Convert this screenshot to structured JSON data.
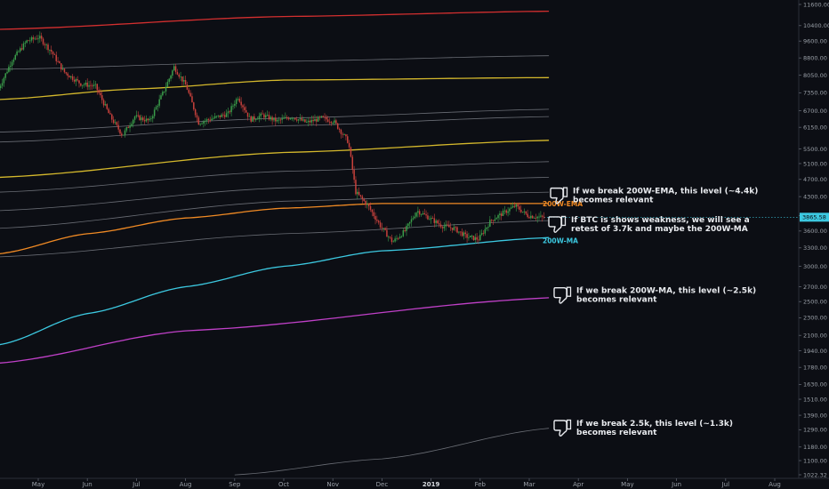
{
  "chart_data": {
    "type": "line",
    "price_scale": "log",
    "y_ticks": [
      11600,
      10400,
      9600,
      8800,
      8050,
      7350,
      6700,
      6150,
      5500,
      5100,
      4700,
      4300,
      3900,
      3600,
      3300,
      3000,
      2700,
      2500,
      2300,
      2100,
      1940,
      1780,
      1630,
      1510,
      1390,
      1290,
      1180,
      1100,
      1022.32
    ],
    "y_tick_labels": [
      "11600.00",
      "10400.00",
      "9600.00",
      "8800.00",
      "8050.00",
      "7350.00",
      "6700.00",
      "6150.00",
      "5500.00",
      "5100.00",
      "4700.00",
      "4300.00",
      "3900.00",
      "3600.00",
      "3300.00",
      "3000.00",
      "2700.00",
      "2500.00",
      "2300.00",
      "2100.00",
      "1940.00",
      "1780.00",
      "1630.00",
      "1510.00",
      "1390.00",
      "1290.00",
      "1180.00",
      "1100.00",
      "1022.32"
    ],
    "ylim": [
      1022.32,
      11600
    ],
    "x_ticks": [
      "May",
      "Jun",
      "Jul",
      "Aug",
      "Sep",
      "Oct",
      "Nov",
      "Dec",
      "2019",
      "Feb",
      "Mar",
      "Apr",
      "May",
      "Jun",
      "Jul",
      "Aug"
    ],
    "x_tick_positions": [
      0,
      1,
      2,
      3,
      4,
      5,
      6,
      7,
      8,
      9,
      10,
      11,
      12,
      13,
      14,
      15
    ],
    "bold_tick": "2019",
    "current_price_label": "3865.58",
    "current_price": 3865.58,
    "series": [
      {
        "name": "",
        "color": "#d32f2f",
        "x": [
          -0.8,
          5,
          10.4
        ],
        "y": [
          10200,
          10900,
          11200
        ]
      },
      {
        "name": "",
        "color": "#888c94",
        "x": [
          -0.8,
          5,
          10.4
        ],
        "y": [
          8300,
          8650,
          8900
        ]
      },
      {
        "name": "",
        "color": "#d4b82c",
        "x": [
          -0.8,
          2,
          5,
          10.4
        ],
        "y": [
          7100,
          7500,
          7850,
          7950
        ]
      },
      {
        "name": "",
        "color": "#888c94",
        "x": [
          -0.8,
          5,
          10.4
        ],
        "y": [
          6000,
          6450,
          6750
        ]
      },
      {
        "name": "",
        "color": "#888c94",
        "x": [
          -0.8,
          5,
          10.4
        ],
        "y": [
          5700,
          6200,
          6500
        ]
      },
      {
        "name": "",
        "color": "#d4b82c",
        "x": [
          -0.8,
          5,
          10.4
        ],
        "y": [
          4750,
          5400,
          5750
        ]
      },
      {
        "name": "",
        "color": "#888c94",
        "x": [
          -0.8,
          5,
          10.4
        ],
        "y": [
          4400,
          4900,
          5150
        ]
      },
      {
        "name": "",
        "color": "#888c94",
        "x": [
          -0.8,
          5,
          10.4
        ],
        "y": [
          4000,
          4500,
          4750
        ]
      },
      {
        "name": "",
        "color": "#888c94",
        "x": [
          -0.8,
          5,
          10.4
        ],
        "y": [
          3650,
          4200,
          4400
        ]
      },
      {
        "name": "200W-EMA",
        "color": "#f08a24",
        "x": [
          -0.8,
          1,
          3,
          5,
          7,
          10.4
        ],
        "y": [
          3200,
          3550,
          3850,
          4050,
          4150,
          4150
        ]
      },
      {
        "name": "",
        "color": "#888c94",
        "x": [
          -0.8,
          5,
          10.4
        ],
        "y": [
          3150,
          3550,
          3800
        ]
      },
      {
        "name": "200W-MA",
        "color": "#3cc8e0",
        "x": [
          -0.8,
          1,
          3,
          5,
          7,
          10.4
        ],
        "y": [
          2000,
          2350,
          2700,
          3000,
          3250,
          3480
        ]
      },
      {
        "name": "",
        "color": "#c040c8",
        "x": [
          -0.8,
          3,
          10.4
        ],
        "y": [
          1820,
          2150,
          2550
        ]
      },
      {
        "name": "",
        "color": "#888c94",
        "x": [
          4,
          7,
          10.4
        ],
        "y": [
          1022,
          1110,
          1300
        ]
      }
    ],
    "price_path": {
      "x": [
        -0.8,
        -0.5,
        -0.2,
        0.05,
        0.3,
        0.55,
        0.9,
        1.2,
        1.5,
        1.75,
        2.0,
        2.3,
        2.6,
        2.8,
        3.05,
        3.3,
        3.6,
        3.9,
        4.1,
        4.35,
        4.6,
        4.9,
        5.2,
        5.5,
        5.8,
        6.05,
        6.35,
        6.5,
        6.75,
        7.0,
        7.25,
        7.5,
        7.75,
        8.0,
        8.25,
        8.5,
        8.75,
        9.0,
        9.25,
        9.5,
        9.75,
        10.0,
        10.3
      ],
      "y": [
        7400,
        8700,
        9600,
        9800,
        9100,
        8200,
        7700,
        7600,
        6500,
        5900,
        6500,
        6350,
        7450,
        8400,
        7600,
        6300,
        6450,
        6600,
        7200,
        6400,
        6550,
        6350,
        6500,
        6300,
        6450,
        6350,
        5700,
        4400,
        4100,
        3700,
        3400,
        3600,
        4000,
        3850,
        3700,
        3650,
        3500,
        3450,
        3800,
        3950,
        4100,
        3900,
        3860
      ]
    },
    "annotations": [
      {
        "text_1": "If we break 200W-EMA, this level (~4.4k)",
        "text_2": "becomes relevant",
        "anchor_y": 4350
      },
      {
        "text_1": "If BTC is shows weakness, we will see a",
        "text_2": "retest of 3.7k and maybe the 200W-MA",
        "anchor_y": 3750
      },
      {
        "text_1": "If we break 200W-MA, this level (~2.5k)",
        "text_2": "becomes relevant",
        "anchor_y": 2600
      },
      {
        "text_1": "If we break 2.5k, this level (~1.3k)",
        "text_2": "becomes relevant",
        "anchor_y": 1310
      }
    ],
    "level_labels": [
      {
        "text": "200W-EMA",
        "color": "#f08a24",
        "y": 4150
      },
      {
        "text": "200W-MA",
        "color": "#3cc8e0",
        "y": 3430
      }
    ],
    "colors": {
      "background": "#0c0e14",
      "up": "#3a9d4a",
      "down": "#c8413c",
      "axis_text": "#9aa0a8",
      "price_tag": "#3cc8e0"
    }
  }
}
